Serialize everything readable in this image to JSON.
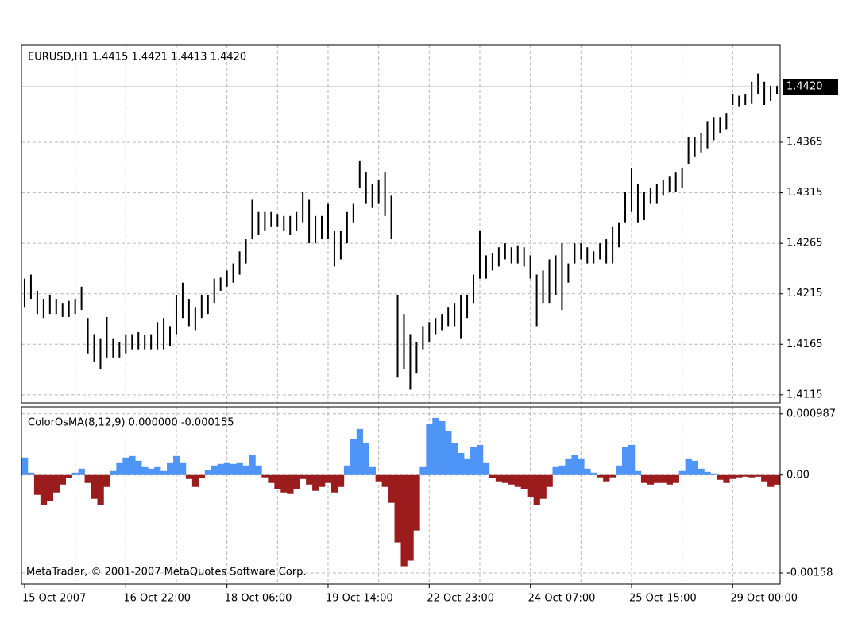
{
  "chart_data": [
    {
      "type": "bars",
      "header": "EURUSD,H1  1.4415 1.4421 1.4413 1.4420",
      "color": "#000000",
      "high": [
        1.423,
        1.4234,
        1.4218,
        1.421,
        1.4214,
        1.421,
        1.4206,
        1.4208,
        1.421,
        1.4222,
        1.4191,
        1.4175,
        1.4171,
        1.4192,
        1.4171,
        1.4167,
        1.4175,
        1.4175,
        1.4177,
        1.4174,
        1.4175,
        1.4187,
        1.4191,
        1.4183,
        1.4214,
        1.4226,
        1.421,
        1.4202,
        1.4214,
        1.4214,
        1.423,
        1.4231,
        1.4238,
        1.4245,
        1.4257,
        1.4269,
        1.4308,
        1.4296,
        1.4296,
        1.4296,
        1.4294,
        1.4292,
        1.4292,
        1.4296,
        1.4316,
        1.4308,
        1.4292,
        1.4292,
        1.4304,
        1.4277,
        1.4277,
        1.4296,
        1.4304,
        1.4347,
        1.4335,
        1.4324,
        1.4328,
        1.4335,
        1.4312,
        1.4214,
        1.4195,
        1.4175,
        1.4167,
        1.4183,
        1.4187,
        1.4191,
        1.4195,
        1.4202,
        1.4206,
        1.4214,
        1.4214,
        1.4234,
        1.4277,
        1.4253,
        1.4255,
        1.4261,
        1.4265,
        1.4261,
        1.4263,
        1.4261,
        1.4253,
        1.4234,
        1.4238,
        1.4249,
        1.4253,
        1.4265,
        1.4245,
        1.4265,
        1.4265,
        1.4261,
        1.4257,
        1.4265,
        1.4269,
        1.4281,
        1.4285,
        1.4316,
        1.4339,
        1.4324,
        1.4316,
        1.432,
        1.4324,
        1.4328,
        1.4331,
        1.4335,
        1.4339,
        1.437,
        1.437,
        1.4374,
        1.4386,
        1.439,
        1.439,
        1.4394,
        1.4413,
        1.4411,
        1.4413,
        1.4425,
        1.4433,
        1.4425,
        1.4421,
        1.4421
      ],
      "low": [
        1.4202,
        1.421,
        1.4195,
        1.4191,
        1.4195,
        1.4195,
        1.4192,
        1.4192,
        1.4195,
        1.4199,
        1.4156,
        1.4148,
        1.414,
        1.4152,
        1.4152,
        1.4152,
        1.4156,
        1.416,
        1.416,
        1.416,
        1.416,
        1.416,
        1.416,
        1.4163,
        1.4175,
        1.4191,
        1.4183,
        1.4179,
        1.4191,
        1.4195,
        1.4206,
        1.4218,
        1.4222,
        1.4226,
        1.4234,
        1.4245,
        1.4269,
        1.4273,
        1.4277,
        1.4281,
        1.4281,
        1.4277,
        1.4273,
        1.4277,
        1.4285,
        1.4265,
        1.4265,
        1.4269,
        1.4269,
        1.4242,
        1.4249,
        1.4265,
        1.4285,
        1.432,
        1.4304,
        1.43,
        1.4304,
        1.4292,
        1.4269,
        1.4132,
        1.414,
        1.412,
        1.4136,
        1.416,
        1.4167,
        1.4175,
        1.4179,
        1.4183,
        1.4183,
        1.4171,
        1.4191,
        1.4206,
        1.423,
        1.423,
        1.4238,
        1.4242,
        1.4249,
        1.4245,
        1.4245,
        1.4242,
        1.423,
        1.4183,
        1.4206,
        1.4206,
        1.4214,
        1.4199,
        1.4226,
        1.4245,
        1.4249,
        1.4245,
        1.4245,
        1.4249,
        1.4245,
        1.4245,
        1.4261,
        1.4285,
        1.4296,
        1.4285,
        1.4288,
        1.4304,
        1.4304,
        1.4312,
        1.4316,
        1.4316,
        1.432,
        1.4343,
        1.4351,
        1.4355,
        1.4359,
        1.4367,
        1.4374,
        1.4378,
        1.4402,
        1.44,
        1.4402,
        1.4403,
        1.4413,
        1.4402,
        1.4406,
        1.4413
      ],
      "current_price": {
        "value": 1.442,
        "label": "1.4420"
      },
      "ylim": [
        1.4107,
        1.4461
      ],
      "yticks": [
        1.4115,
        1.4165,
        1.4215,
        1.4265,
        1.4315,
        1.4365
      ],
      "grid": true
    },
    {
      "type": "bar",
      "title": "ColorOsMA(8,12,9) 0.000000 -0.000155",
      "annotation": "MetaTrader, © 2001-2007 MetaQuotes Software Corp.",
      "up_color": "#4f94f7",
      "down_color": "#9b1c1c",
      "categories": [
        "15 Oct 2007",
        null,
        null,
        null,
        null,
        null,
        null,
        null,
        null,
        null,
        null,
        null,
        null,
        null,
        null,
        null,
        "16 Oct 22:00",
        null,
        null,
        null,
        null,
        null,
        null,
        null,
        null,
        null,
        null,
        null,
        null,
        null,
        null,
        null,
        "18 Oct 06:00",
        null,
        null,
        null,
        null,
        null,
        null,
        null,
        null,
        null,
        null,
        null,
        null,
        null,
        null,
        null,
        "19 Oct 14:00",
        null,
        null,
        null,
        null,
        null,
        null,
        null,
        null,
        null,
        null,
        null,
        null,
        null,
        null,
        null,
        "22 Oct 23:00",
        null,
        null,
        null,
        null,
        null,
        null,
        null,
        null,
        null,
        null,
        null,
        null,
        null,
        null,
        null,
        "24 Oct 07:00",
        null,
        null,
        null,
        null,
        null,
        null,
        null,
        null,
        null,
        null,
        null,
        null,
        null,
        null,
        null,
        "25 Oct 15:00",
        null,
        null,
        null,
        null,
        null,
        null,
        null,
        null,
        null,
        null,
        null,
        null,
        null,
        null,
        null,
        "29 Oct 00:00",
        null,
        null,
        null,
        null,
        null,
        null,
        null
      ],
      "values": [
        0.000282,
        3.8e-05,
        -0.00032,
        -0.000486,
        -0.000422,
        -0.000282,
        -0.000154,
        -5.1e-05,
        3.8e-05,
        0.000102,
        -0.000128,
        -0.000384,
        -0.000486,
        -0.000192,
        6.4e-05,
        0.000192,
        0.000282,
        0.000307,
        0.00023,
        0.000128,
        0.000102,
        0.000128,
        6.4e-05,
        0.000192,
        0.000307,
        0.000192,
        -6.4e-05,
        -0.000192,
        -5.1e-05,
        7.7e-05,
        0.000154,
        0.000179,
        0.000192,
        0.000179,
        0.000192,
        0.000154,
        0.00032,
        0.000154,
        -3.8e-05,
        -0.000128,
        -0.00023,
        -0.000282,
        -0.000307,
        -0.00023,
        -6.4e-05,
        -0.000154,
        -0.000256,
        -0.000192,
        -0.000128,
        -0.000282,
        -0.000192,
        0.000154,
        0.000576,
        0.000742,
        0.000512,
        0.000128,
        -0.000102,
        -0.000192,
        -0.000448,
        -0.001088,
        -0.001472,
        -0.001382,
        -0.000896,
        0.000128,
        0.000832,
        0.000922,
        0.00087,
        0.000704,
        0.000512,
        0.000358,
        0.000256,
        0.000448,
        0.000486,
        0.000192,
        -5.1e-05,
        -0.000102,
        -0.000128,
        -0.000154,
        -0.000192,
        -0.00023,
        -0.000358,
        -0.000486,
        -0.000384,
        -0.000192,
        0.000128,
        0.000154,
        0.000256,
        0.00032,
        0.000256,
        0.000102,
        3.8e-05,
        -3.8e-05,
        -0.000102,
        -3.8e-05,
        0.000154,
        0.000448,
        0.000486,
        6.4e-05,
        -0.000128,
        -0.000154,
        -0.000128,
        -0.000128,
        -0.000154,
        -0.000128,
        6.4e-05,
        0.000256,
        0.00023,
        0.000102,
        5.1e-05,
        2.6e-05,
        -7.7e-05,
        -0.000128,
        -6.4e-05,
        -3.8e-05,
        -2.6e-05,
        -3.8e-05,
        -2.6e-05,
        -0.000102,
        -0.000192,
        -0.000155
      ],
      "ylim": [
        -0.00176,
        0.0011
      ],
      "yticks": [
        0.000987,
        {
          "value": 0,
          "label": "0.00"
        },
        -0.00158
      ],
      "grid": true
    }
  ]
}
